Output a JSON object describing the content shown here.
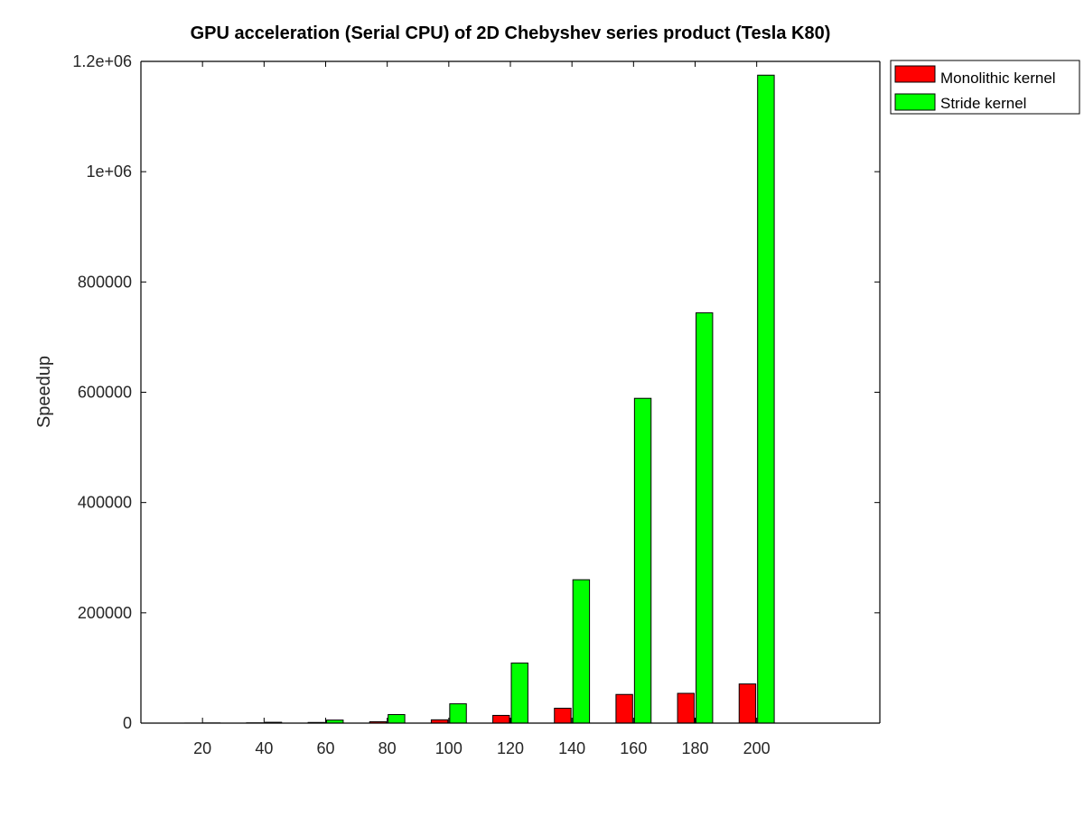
{
  "chart_data": {
    "type": "bar",
    "title": "GPU acceleration (Serial CPU) of 2D Chebyshev series product (Tesla K80)",
    "xlabel": "",
    "ylabel": "Speedup",
    "categories": [
      "20",
      "40",
      "60",
      "80",
      "100",
      "120",
      "140",
      "160",
      "180",
      "200"
    ],
    "series": [
      {
        "name": "Monolithic kernel",
        "color": "#ff0000",
        "values": [
          100,
          500,
          1200,
          2600,
          6000,
          14000,
          27000,
          52000,
          54000,
          71000
        ]
      },
      {
        "name": "Stride kernel",
        "color": "#00ff00",
        "values": [
          300,
          1500,
          5500,
          15500,
          35000,
          109000,
          260000,
          589000,
          744000,
          1175000
        ]
      }
    ],
    "ylim": [
      0,
      1200000
    ],
    "yticks": [
      {
        "value": 0,
        "label": "0"
      },
      {
        "value": 200000,
        "label": "200000"
      },
      {
        "value": 400000,
        "label": "400000"
      },
      {
        "value": 600000,
        "label": "600000"
      },
      {
        "value": 800000,
        "label": "800000"
      },
      {
        "value": 1000000,
        "label": "1e+06"
      },
      {
        "value": 1200000,
        "label": "1.2e+06"
      }
    ],
    "xlim": [
      0,
      12
    ],
    "grid": false,
    "legend_position": "top-right-outside",
    "axis_color": "#000000",
    "tick_label_color": "#262626",
    "bar_edge_color": "#000000"
  }
}
